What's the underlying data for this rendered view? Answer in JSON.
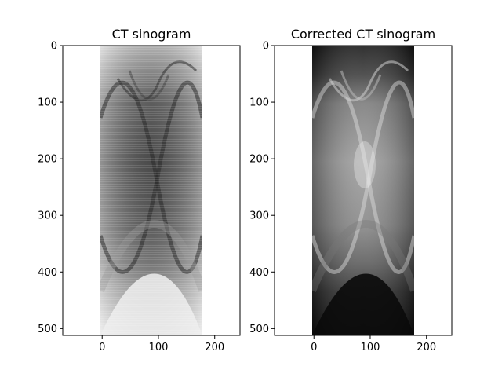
{
  "chart_data": [
    {
      "type": "heatmap",
      "title": "CT sinogram",
      "xlabel": "",
      "ylabel": "",
      "xlim": [
        -70,
        245
      ],
      "ylim": [
        512,
        0
      ],
      "image_extent_x": [
        0,
        180
      ],
      "image_extent_y": [
        0,
        512
      ],
      "colormap": "gray",
      "xticks": [
        0,
        100,
        200
      ],
      "yticks": [
        0,
        100,
        200,
        300,
        400,
        500
      ],
      "appearance": "light background, dark object region"
    },
    {
      "type": "heatmap",
      "title": "Corrected CT sinogram",
      "xlabel": "",
      "ylabel": "",
      "xlim": [
        -70,
        245
      ],
      "ylim": [
        512,
        0
      ],
      "image_extent_x": [
        0,
        180
      ],
      "image_extent_y": [
        0,
        512
      ],
      "colormap": "gray",
      "xticks": [
        0,
        100,
        200
      ],
      "yticks": [
        0,
        100,
        200,
        300,
        400,
        500
      ],
      "appearance": "dark background, bright object region"
    }
  ]
}
